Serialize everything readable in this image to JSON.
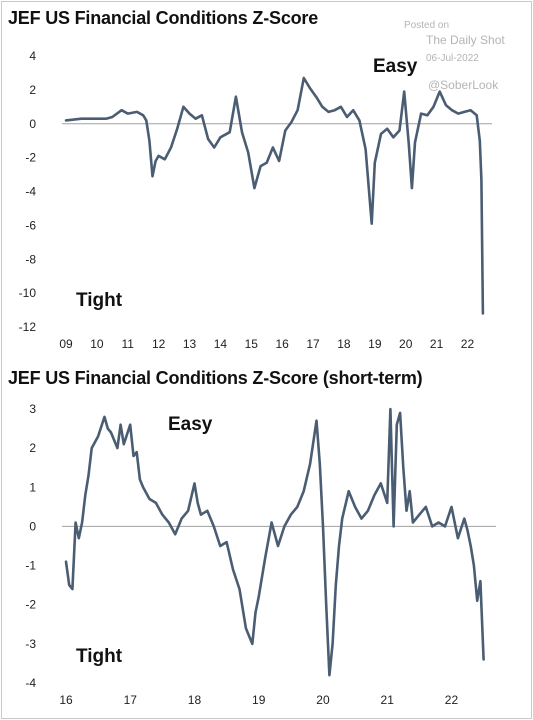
{
  "watermark": {
    "posted": "Posted on",
    "source": "The Daily Shot",
    "date": "06-Jul-2022",
    "handle": "@SoberLook"
  },
  "colors": {
    "line": "#4a5d72",
    "zero_line": "#a0a0a0",
    "text": "#111111"
  },
  "chart_data": [
    {
      "type": "line",
      "title": "JEF US Financial Conditions Z-Score",
      "annotations": [
        "Easy",
        "Tight"
      ],
      "xlim": [
        2009,
        2022.6
      ],
      "ylim": [
        -12,
        4
      ],
      "x_ticks": [
        {
          "v": 2009,
          "label": "09"
        },
        {
          "v": 2010,
          "label": "10"
        },
        {
          "v": 2011,
          "label": "11"
        },
        {
          "v": 2012,
          "label": "12"
        },
        {
          "v": 2013,
          "label": "13"
        },
        {
          "v": 2014,
          "label": "14"
        },
        {
          "v": 2015,
          "label": "15"
        },
        {
          "v": 2016,
          "label": "16"
        },
        {
          "v": 2017,
          "label": "17"
        },
        {
          "v": 2018,
          "label": "18"
        },
        {
          "v": 2019,
          "label": "19"
        },
        {
          "v": 2020,
          "label": "20"
        },
        {
          "v": 2021,
          "label": "21"
        },
        {
          "v": 2022,
          "label": "22"
        }
      ],
      "y_ticks": [
        {
          "v": 4,
          "label": "4"
        },
        {
          "v": 2,
          "label": "2"
        },
        {
          "v": 0,
          "label": "0"
        },
        {
          "v": -2,
          "label": "-2"
        },
        {
          "v": -4,
          "label": "-4"
        },
        {
          "v": -6,
          "label": "-6"
        },
        {
          "v": -8,
          "label": "-8"
        },
        {
          "v": -10,
          "label": "-10"
        },
        {
          "v": -12,
          "label": "-12"
        }
      ],
      "x": [
        2009.0,
        2009.5,
        2010.0,
        2010.3,
        2010.5,
        2010.8,
        2011.0,
        2011.3,
        2011.5,
        2011.6,
        2011.7,
        2011.8,
        2011.9,
        2012.0,
        2012.2,
        2012.4,
        2012.6,
        2012.8,
        2013.0,
        2013.2,
        2013.4,
        2013.6,
        2013.8,
        2014.0,
        2014.3,
        2014.5,
        2014.7,
        2014.9,
        2015.1,
        2015.3,
        2015.5,
        2015.7,
        2015.9,
        2016.1,
        2016.3,
        2016.5,
        2016.7,
        2016.9,
        2017.1,
        2017.3,
        2017.5,
        2017.7,
        2017.9,
        2018.1,
        2018.3,
        2018.5,
        2018.7,
        2018.9,
        2019.0,
        2019.2,
        2019.4,
        2019.6,
        2019.8,
        2019.95,
        2020.1,
        2020.2,
        2020.3,
        2020.5,
        2020.7,
        2020.9,
        2021.1,
        2021.3,
        2021.5,
        2021.7,
        2021.9,
        2022.1,
        2022.3,
        2022.4,
        2022.45,
        2022.5
      ],
      "values": [
        0.2,
        0.3,
        0.3,
        0.3,
        0.4,
        0.8,
        0.6,
        0.7,
        0.5,
        0.2,
        -1.0,
        -3.1,
        -2.2,
        -1.9,
        -2.1,
        -1.4,
        -0.3,
        1.0,
        0.6,
        0.3,
        0.5,
        -0.9,
        -1.4,
        -0.8,
        -0.5,
        1.6,
        -0.5,
        -1.7,
        -3.8,
        -2.5,
        -2.3,
        -1.4,
        -2.2,
        -0.4,
        0.1,
        0.8,
        2.7,
        2.1,
        1.6,
        1.0,
        0.7,
        0.8,
        1.0,
        0.4,
        0.8,
        0.2,
        -1.5,
        -5.9,
        -2.3,
        -0.6,
        -0.3,
        -0.8,
        -0.4,
        1.9,
        -1.2,
        -3.8,
        -1.1,
        0.6,
        0.5,
        1.0,
        1.9,
        1.1,
        0.8,
        0.6,
        0.7,
        0.8,
        0.5,
        -1.0,
        -3.3,
        -11.2
      ]
    },
    {
      "type": "line",
      "title": "JEF US Financial Conditions Z-Score (short-term)",
      "annotations": [
        "Easy",
        "Tight"
      ],
      "xlim": [
        2016,
        2022.6
      ],
      "ylim": [
        -4,
        3
      ],
      "x_ticks": [
        {
          "v": 2016,
          "label": "16"
        },
        {
          "v": 2017,
          "label": "17"
        },
        {
          "v": 2018,
          "label": "18"
        },
        {
          "v": 2019,
          "label": "19"
        },
        {
          "v": 2020,
          "label": "20"
        },
        {
          "v": 2021,
          "label": "21"
        },
        {
          "v": 2022,
          "label": "22"
        }
      ],
      "y_ticks": [
        {
          "v": 3,
          "label": "3"
        },
        {
          "v": 2,
          "label": "2"
        },
        {
          "v": 1,
          "label": "1"
        },
        {
          "v": 0,
          "label": "0"
        },
        {
          "v": -1,
          "label": "-1"
        },
        {
          "v": -2,
          "label": "-2"
        },
        {
          "v": -3,
          "label": "-3"
        },
        {
          "v": -4,
          "label": "-4"
        }
      ],
      "x": [
        2016.0,
        2016.05,
        2016.1,
        2016.15,
        2016.2,
        2016.25,
        2016.3,
        2016.35,
        2016.4,
        2016.5,
        2016.6,
        2016.65,
        2016.7,
        2016.8,
        2016.85,
        2016.9,
        2017.0,
        2017.05,
        2017.1,
        2017.15,
        2017.2,
        2017.3,
        2017.4,
        2017.5,
        2017.6,
        2017.7,
        2017.8,
        2017.9,
        2018.0,
        2018.05,
        2018.1,
        2018.2,
        2018.3,
        2018.4,
        2018.5,
        2018.6,
        2018.7,
        2018.8,
        2018.9,
        2018.95,
        2019.0,
        2019.1,
        2019.2,
        2019.3,
        2019.4,
        2019.5,
        2019.6,
        2019.7,
        2019.8,
        2019.9,
        2019.95,
        2020.0,
        2020.05,
        2020.1,
        2020.15,
        2020.2,
        2020.25,
        2020.3,
        2020.4,
        2020.5,
        2020.6,
        2020.7,
        2020.8,
        2020.9,
        2021.0,
        2021.05,
        2021.1,
        2021.15,
        2021.2,
        2021.25,
        2021.3,
        2021.35,
        2021.4,
        2021.5,
        2021.6,
        2021.7,
        2021.8,
        2021.9,
        2022.0,
        2022.1,
        2022.2,
        2022.25,
        2022.3,
        2022.35,
        2022.4,
        2022.45,
        2022.5
      ],
      "values": [
        -0.9,
        -1.5,
        -1.6,
        0.1,
        -0.3,
        0.1,
        0.8,
        1.3,
        2.0,
        2.3,
        2.8,
        2.5,
        2.4,
        2.0,
        2.6,
        2.1,
        2.6,
        1.8,
        1.9,
        1.2,
        1.0,
        0.7,
        0.6,
        0.3,
        0.1,
        -0.2,
        0.2,
        0.4,
        1.1,
        0.6,
        0.3,
        0.4,
        0.0,
        -0.5,
        -0.4,
        -1.1,
        -1.6,
        -2.6,
        -3.0,
        -2.2,
        -1.8,
        -0.8,
        0.1,
        -0.5,
        0.0,
        0.3,
        0.5,
        0.9,
        1.6,
        2.7,
        1.6,
        0.0,
        -2.0,
        -3.8,
        -3.0,
        -1.5,
        -0.5,
        0.2,
        0.9,
        0.5,
        0.2,
        0.4,
        0.8,
        1.1,
        0.6,
        3.0,
        0.0,
        2.6,
        2.9,
        1.5,
        0.4,
        0.9,
        0.1,
        0.3,
        0.5,
        0.0,
        0.1,
        0.0,
        0.5,
        -0.3,
        0.2,
        -0.1,
        -0.5,
        -1.0,
        -1.9,
        -1.4,
        -3.4
      ]
    }
  ]
}
